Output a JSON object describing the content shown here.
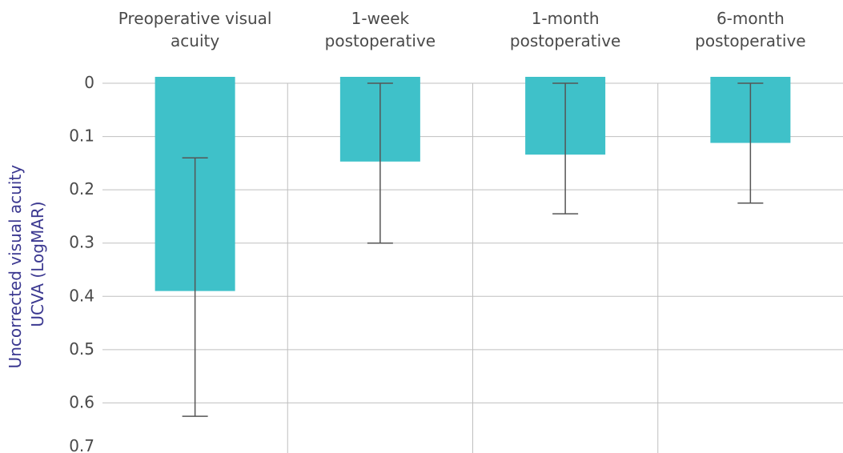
{
  "colors": {
    "bar": "#3fc1c9",
    "axis_label": "#3b3890",
    "text": "#4a4a4a",
    "grid": "#bfbfbf"
  },
  "chart_data": {
    "type": "bar",
    "orientation": "vertical-inverted",
    "categories": [
      [
        "Preoperative visual",
        "acuity"
      ],
      [
        "1-week",
        "postoperative"
      ],
      [
        "1-month",
        "postoperative"
      ],
      [
        "6-month",
        "postoperative"
      ]
    ],
    "values": [
      0.39,
      0.147,
      0.134,
      0.112
    ],
    "error_low": [
      0.14,
      0.0,
      0.0,
      0.0
    ],
    "error_high": [
      0.625,
      0.3,
      0.245,
      0.225
    ],
    "ylabel_lines": [
      "Uncorrected visual acuity",
      "UCVA (LogMAR)"
    ],
    "yticks": [
      "0",
      "0.1",
      "0.2",
      "0.3",
      "0.4",
      "0.5",
      "0.6",
      "0.7"
    ],
    "ylim": [
      0,
      0.7
    ],
    "category_axis_position": "top",
    "grid": true
  }
}
